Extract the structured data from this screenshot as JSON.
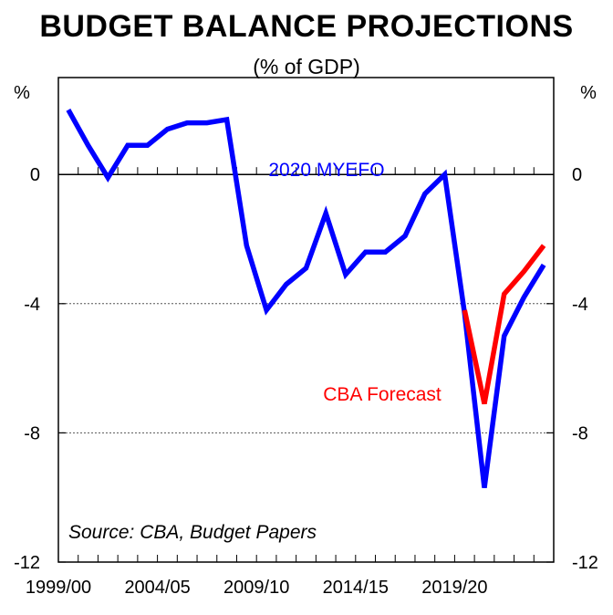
{
  "chart_data": {
    "type": "line",
    "title": "BUDGET BALANCE PROJECTIONS",
    "subtitle": "(% of GDP)",
    "ylabel_left": "%",
    "ylabel_right": "%",
    "ylim": [
      -12,
      3
    ],
    "yticks": [
      0,
      -4,
      -8,
      -12
    ],
    "ytick_labels": [
      "0",
      "-4",
      "-8",
      "-12"
    ],
    "xlim": [
      1999,
      2024
    ],
    "xtick_positions": [
      1999,
      2004,
      2009,
      2014,
      2019
    ],
    "xtick_labels": [
      "1999/00",
      "2004/05",
      "2009/10",
      "2014/15",
      "2019/20"
    ],
    "source": "Source: CBA, Budget Papers",
    "series": [
      {
        "name": "2020 MYEFO",
        "label": "2020 MYEFO",
        "color": "#0000ff",
        "x": [
          1999.5,
          2000.5,
          2001.5,
          2002.5,
          2003.5,
          2004.5,
          2005.5,
          2006.5,
          2007.5,
          2008.5,
          2009.5,
          2010.5,
          2011.5,
          2012.5,
          2013.5,
          2014.5,
          2015.5,
          2016.5,
          2017.5,
          2018.5,
          2019.5,
          2020.5,
          2021.5,
          2022.5,
          2023.5
        ],
        "values": [
          2.0,
          0.9,
          -0.1,
          0.9,
          0.9,
          1.4,
          1.6,
          1.6,
          1.7,
          -2.2,
          -4.2,
          -3.4,
          -2.9,
          -1.2,
          -3.1,
          -2.4,
          -2.4,
          -1.9,
          -0.6,
          0.0,
          -4.3,
          -9.7,
          -5.0,
          -3.8,
          -2.8
        ]
      },
      {
        "name": "CBA Forecast",
        "label": "CBA Forecast",
        "color": "#ff0000",
        "x": [
          2019.5,
          2020.5,
          2021.5,
          2022.5,
          2023.5
        ],
        "values": [
          -4.2,
          -7.1,
          -3.7,
          -3.0,
          -2.2
        ]
      }
    ]
  }
}
